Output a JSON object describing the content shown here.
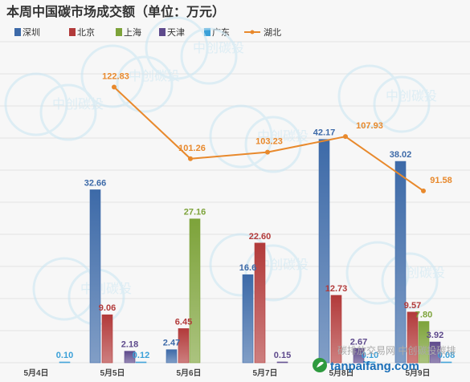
{
  "chart_data": {
    "type": "bar",
    "title": "本周中国碳市场成交额（单位：万元）",
    "categories": [
      "5月4日",
      "5月5日",
      "5月6日",
      "5月7日",
      "5月8日",
      "5月9日"
    ],
    "series": [
      {
        "name": "深圳",
        "type": "bar",
        "color": "#3d6aa8",
        "values": [
          null,
          32.66,
          2.47,
          16.63,
          42.17,
          38.02
        ],
        "labels": [
          "",
          "32.66",
          "2.47",
          "16.6",
          "42.17",
          "38.02"
        ]
      },
      {
        "name": "北京",
        "type": "bar",
        "color": "#b23a3a",
        "values": [
          null,
          9.06,
          6.45,
          22.6,
          12.73,
          9.57
        ],
        "labels": [
          "",
          "9.06",
          "6.45",
          "22.60",
          "12.73",
          "9.57"
        ]
      },
      {
        "name": "上海",
        "type": "bar",
        "color": "#7da33a",
        "values": [
          null,
          null,
          27.16,
          null,
          null,
          7.8
        ],
        "labels": [
          "",
          "",
          "27.16",
          "",
          "",
          "7.80"
        ]
      },
      {
        "name": "天津",
        "type": "bar",
        "color": "#5e4a8c",
        "values": [
          null,
          2.18,
          null,
          0.15,
          2.67,
          3.92
        ],
        "labels": [
          "",
          "2.18",
          "",
          "0.15",
          "2.67",
          "3.92"
        ]
      },
      {
        "name": "广东",
        "type": "bar",
        "color": "#3aa0d8",
        "values": [
          0.1,
          0.12,
          null,
          null,
          0.1,
          0.08
        ],
        "labels": [
          "0.10",
          "0.12",
          "",
          "",
          "0.10",
          "0.08"
        ]
      },
      {
        "name": "湖北",
        "type": "line",
        "color": "#e8892c",
        "values": [
          null,
          122.83,
          101.26,
          103.23,
          107.93,
          91.58
        ],
        "labels": [
          "",
          "122.83",
          "101.26",
          "103.23",
          "107.93",
          "91.58"
        ]
      }
    ],
    "legend_position": "top-left",
    "grid": true
  },
  "watermark": {
    "text": "中创碳投",
    "brand": "tanpaifang.com",
    "overlay": "碳排放交易网 中创碳投碳排"
  }
}
